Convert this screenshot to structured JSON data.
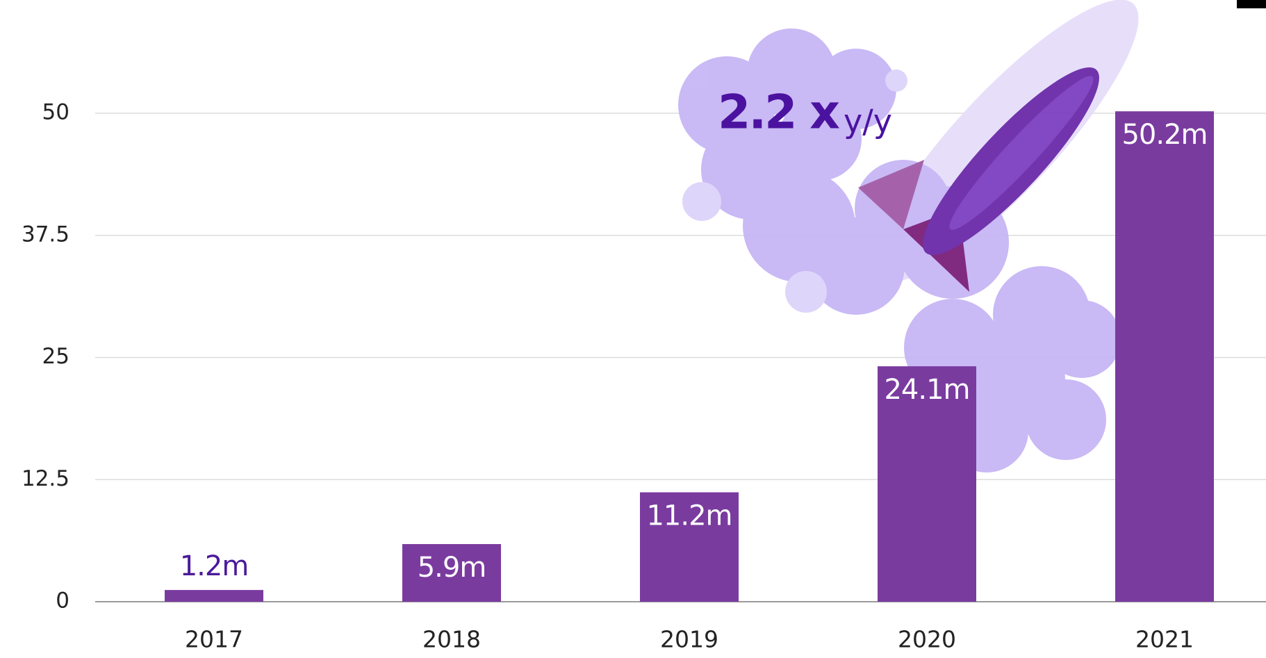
{
  "chart_data": {
    "type": "bar",
    "categories": [
      "2017",
      "2018",
      "2019",
      "2020",
      "2021"
    ],
    "values": [
      1.2,
      5.9,
      11.2,
      24.1,
      50.2
    ],
    "value_labels": [
      "1.2m",
      "5.9m",
      "11.2m",
      "24.1m",
      "50.2m"
    ],
    "color": "#7a3b9f",
    "ylim": [
      0,
      50
    ],
    "yticks": [
      0,
      12.5,
      25,
      37.5,
      50
    ],
    "grid": true,
    "annotation": [
      "2.2 x",
      "y/y"
    ]
  }
}
